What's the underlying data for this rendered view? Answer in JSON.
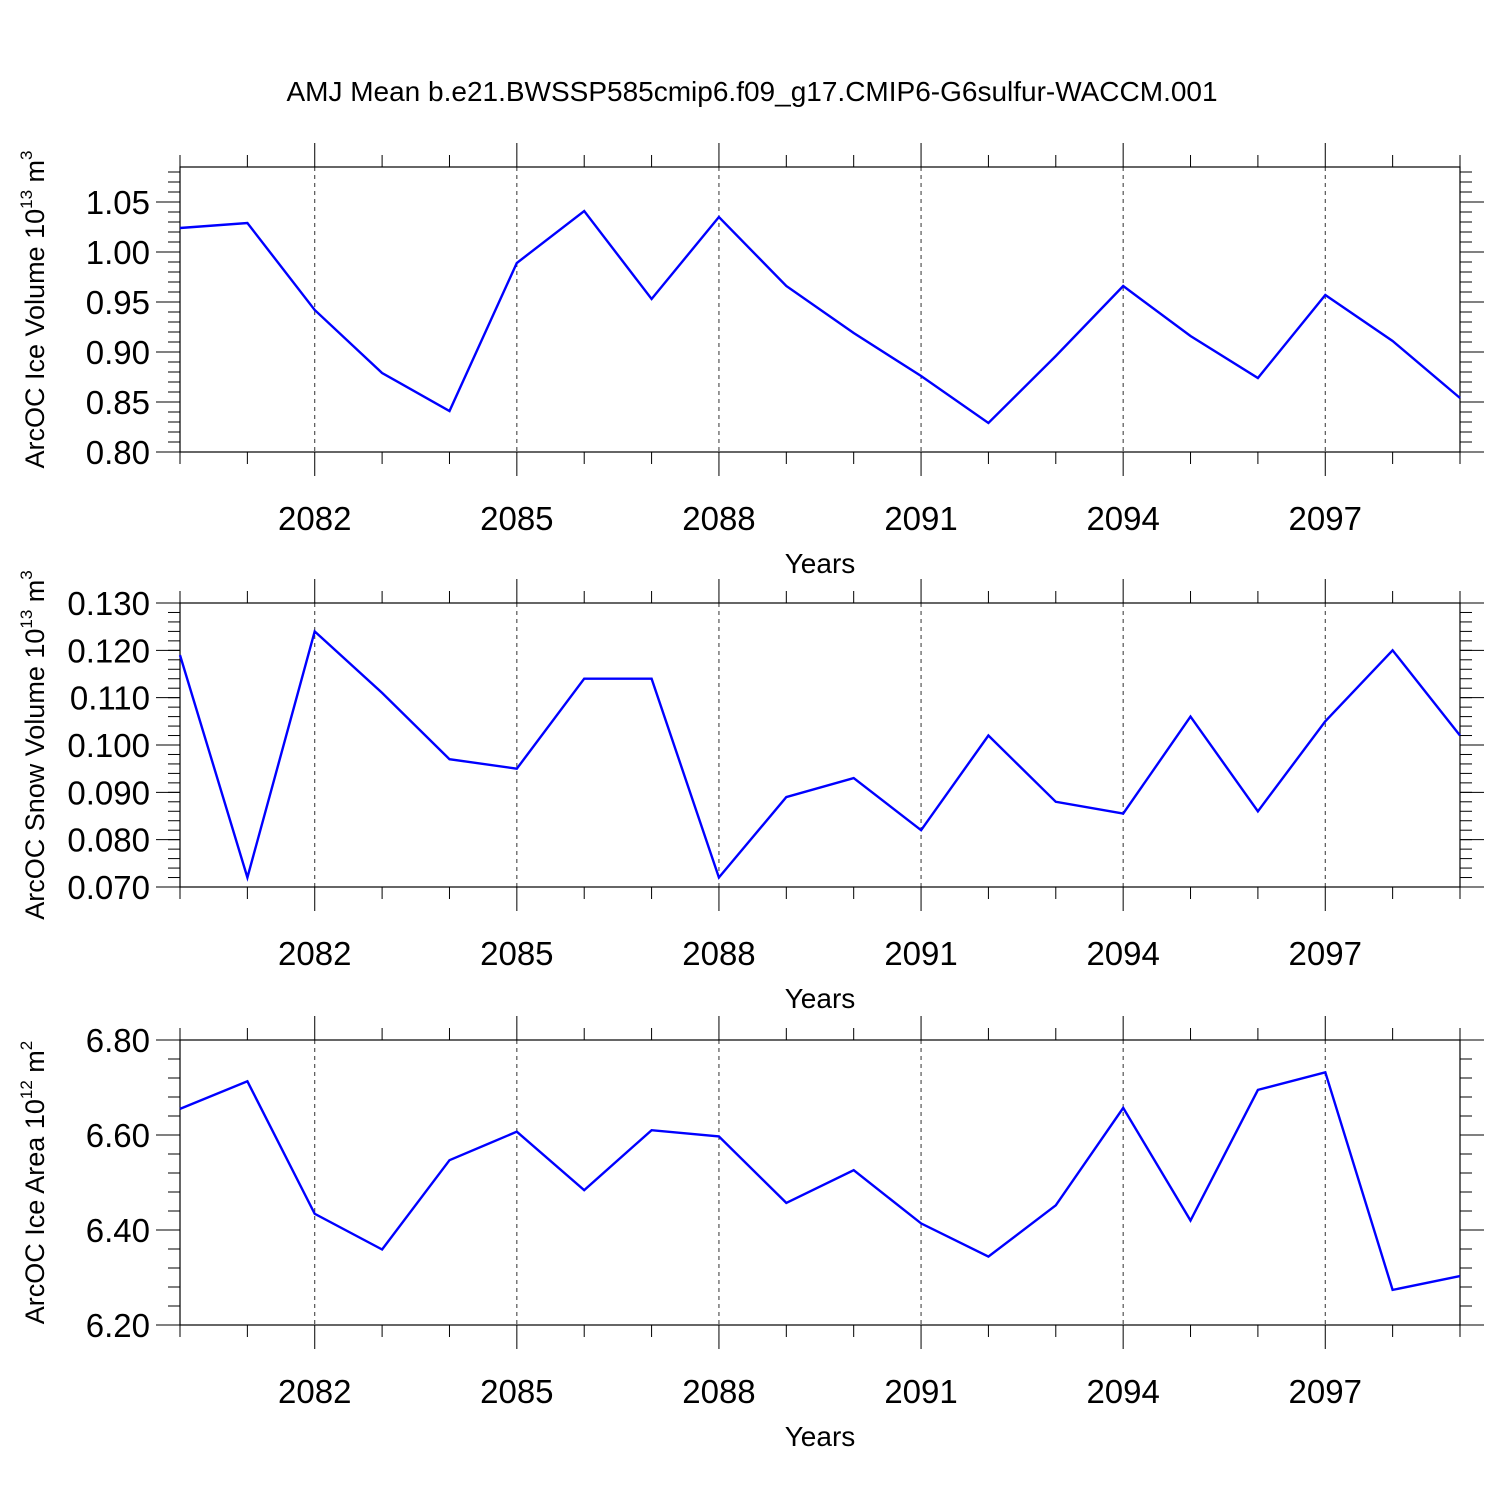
{
  "title": "AMJ Mean b.e21.BWSSP585cmip6.f09_g17.CMIP6-G6sulfur-WACCM.001",
  "chart_data": [
    {
      "type": "line",
      "xlabel": "Years",
      "ylabel": {
        "text": "ArcOC Ice Volume 10",
        "exp": "13",
        "unit": " m",
        "unit_exp": "3"
      },
      "xlim": [
        2080,
        2099
      ],
      "ylim": [
        0.8,
        1.085
      ],
      "x_ticks": [
        2082,
        2085,
        2088,
        2091,
        2094,
        2097
      ],
      "x_tick_labels": [
        "2082",
        "2085",
        "2088",
        "2091",
        "2094",
        "2097"
      ],
      "y_ticks": [
        0.8,
        0.85,
        0.9,
        0.95,
        1.0,
        1.05
      ],
      "y_tick_labels": [
        "0.80",
        "0.85",
        "0.90",
        "0.95",
        "1.00",
        "1.05"
      ],
      "y_minor_step": 0.01,
      "grid": "x-dashed",
      "line_color": "#0000ff",
      "x": [
        2080,
        2081,
        2082,
        2083,
        2084,
        2085,
        2086,
        2087,
        2088,
        2089,
        2090,
        2091,
        2092,
        2093,
        2094,
        2095,
        2096,
        2097,
        2098,
        2099
      ],
      "y": [
        1.024,
        1.029,
        0.942,
        0.879,
        0.841,
        0.989,
        1.041,
        0.953,
        1.035,
        0.966,
        0.919,
        0.876,
        0.829,
        0.896,
        0.966,
        0.916,
        0.874,
        0.957,
        0.911,
        0.854
      ]
    },
    {
      "type": "line",
      "xlabel": "Years",
      "ylabel": {
        "text": "ArcOC Snow Volume 10",
        "exp": "13",
        "unit": " m",
        "unit_exp": "3"
      },
      "xlim": [
        2080,
        2099
      ],
      "ylim": [
        0.07,
        0.13
      ],
      "x_ticks": [
        2082,
        2085,
        2088,
        2091,
        2094,
        2097
      ],
      "x_tick_labels": [
        "2082",
        "2085",
        "2088",
        "2091",
        "2094",
        "2097"
      ],
      "y_ticks": [
        0.07,
        0.08,
        0.09,
        0.1,
        0.11,
        0.12,
        0.13
      ],
      "y_tick_labels": [
        "0.070",
        "0.080",
        "0.090",
        "0.100",
        "0.110",
        "0.120",
        "0.130"
      ],
      "y_minor_step": 0.002,
      "grid": "x-dashed",
      "line_color": "#0000ff",
      "x": [
        2080,
        2081,
        2082,
        2083,
        2084,
        2085,
        2086,
        2087,
        2088,
        2089,
        2090,
        2091,
        2092,
        2093,
        2094,
        2095,
        2096,
        2097,
        2098,
        2099
      ],
      "y": [
        0.119,
        0.072,
        0.124,
        0.111,
        0.097,
        0.095,
        0.114,
        0.114,
        0.072,
        0.089,
        0.093,
        0.082,
        0.102,
        0.088,
        0.0855,
        0.106,
        0.086,
        0.105,
        0.12,
        0.102
      ]
    },
    {
      "type": "line",
      "xlabel": "Years",
      "ylabel": {
        "text": "ArcOC Ice Area 10",
        "exp": "12",
        "unit": " m",
        "unit_exp": "2"
      },
      "xlim": [
        2080,
        2099
      ],
      "ylim": [
        6.2,
        6.8
      ],
      "x_ticks": [
        2082,
        2085,
        2088,
        2091,
        2094,
        2097
      ],
      "x_tick_labels": [
        "2082",
        "2085",
        "2088",
        "2091",
        "2094",
        "2097"
      ],
      "y_ticks": [
        6.2,
        6.4,
        6.6,
        6.8
      ],
      "y_tick_labels": [
        "6.20",
        "6.40",
        "6.60",
        "6.80"
      ],
      "y_minor_step": 0.04,
      "grid": "x-dashed",
      "line_color": "#0000ff",
      "x": [
        2080,
        2081,
        2082,
        2083,
        2084,
        2085,
        2086,
        2087,
        2088,
        2089,
        2090,
        2091,
        2092,
        2093,
        2094,
        2095,
        2096,
        2097,
        2098,
        2099
      ],
      "y": [
        6.655,
        6.713,
        6.434,
        6.359,
        6.547,
        6.607,
        6.484,
        6.61,
        6.597,
        6.457,
        6.526,
        6.414,
        6.344,
        6.452,
        6.657,
        6.42,
        6.695,
        6.732,
        6.274,
        6.303
      ]
    }
  ]
}
